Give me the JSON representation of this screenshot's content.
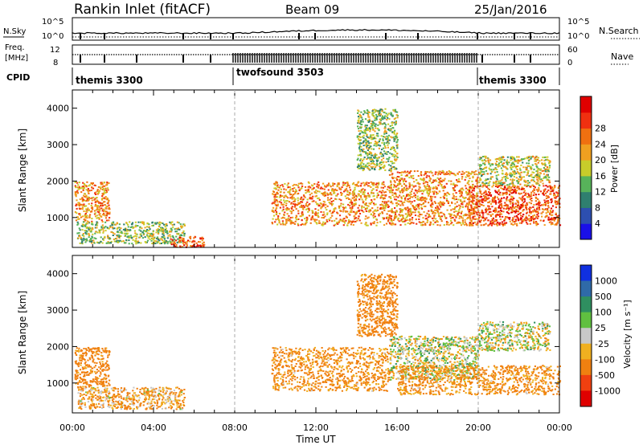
{
  "header": {
    "station": "Rankin Inlet (fitACF)",
    "beam": "Beam 09",
    "date": "25/Jan/2016"
  },
  "meta_panels": {
    "nsky_label": "N.Sky",
    "nsearch_label": "N.Search",
    "freq_label_top": "Freq.",
    "freq_label_bottom": "[MHz]",
    "nave_label": "Nave",
    "cpid_label": "CPID",
    "nsky_ticks": [
      "10^5",
      "10^0"
    ],
    "nsearch_ticks": [
      "10^5",
      "10^0"
    ],
    "freq_ticks": [
      "12",
      "8"
    ],
    "nave_ticks": [
      "60",
      "0"
    ],
    "cpid_segments": [
      {
        "name": "themis 3300",
        "start_hour": 0,
        "end_hour": 8
      },
      {
        "name": "twofsound 3503",
        "start_hour": 8,
        "end_hour": 20
      },
      {
        "name": "themis 3300",
        "start_hour": 20,
        "end_hour": 24
      }
    ]
  },
  "axes": {
    "ylabel": "Slant Range [km]",
    "xlabel": "Time UT",
    "x_ticks": [
      "00:00",
      "04:00",
      "08:00",
      "12:00",
      "16:00",
      "20:00",
      "00:00"
    ],
    "y_ticks": [
      "1000",
      "2000",
      "3000",
      "4000"
    ]
  },
  "colorbars": {
    "power": {
      "label": "Power [dB]",
      "ticks": [
        "4",
        "8",
        "12",
        "16",
        "20",
        "24",
        "28"
      ],
      "colors": [
        "#1a10e8",
        "#2d4fb0",
        "#2f7f6f",
        "#57b35a",
        "#c8cc2a",
        "#f0a020",
        "#f07010",
        "#f03010",
        "#e00000"
      ]
    },
    "velocity": {
      "label": "Velocity [m s⁻¹]",
      "ticks": [
        "1000",
        "500",
        "100",
        "25",
        "-25",
        "-100",
        "-500",
        "-1000"
      ],
      "colors": [
        "#1030e0",
        "#2f6aa8",
        "#2f8f60",
        "#60c040",
        "#c8c8c8",
        "#f0b020",
        "#f08010",
        "#f04010",
        "#e00000"
      ]
    }
  },
  "chart_data": [
    {
      "type": "heatmap",
      "name": "power",
      "x_range_hours": [
        0,
        24
      ],
      "y_range_km": [
        180,
        4500
      ],
      "regions": [
        {
          "t0": 0.1,
          "t1": 1.8,
          "r0": 900,
          "r1": 2000,
          "value_db": 22
        },
        {
          "t0": 0.2,
          "t1": 5.5,
          "r0": 300,
          "r1": 900,
          "value_db": 14
        },
        {
          "t0": 4.8,
          "t1": 6.5,
          "r0": 200,
          "r1": 500,
          "value_db": 26
        },
        {
          "t0": 9.8,
          "t1": 15.6,
          "r0": 800,
          "r1": 2000,
          "value_db": 22
        },
        {
          "t0": 14.0,
          "t1": 16.0,
          "r0": 2300,
          "r1": 4000,
          "value_db": 14
        },
        {
          "t0": 15.6,
          "t1": 20.0,
          "r0": 800,
          "r1": 2300,
          "value_db": 22
        },
        {
          "t0": 19.5,
          "t1": 24.0,
          "r0": 800,
          "r1": 1900,
          "value_db": 26
        },
        {
          "t0": 20.0,
          "t1": 23.5,
          "r0": 1900,
          "r1": 2700,
          "value_db": 16
        }
      ]
    },
    {
      "type": "heatmap",
      "name": "velocity",
      "x_range_hours": [
        0,
        24
      ],
      "y_range_km": [
        180,
        4500
      ],
      "regions": [
        {
          "t0": 0.1,
          "t1": 1.8,
          "r0": 900,
          "r1": 2000,
          "value_ms": -200
        },
        {
          "t0": 0.2,
          "t1": 5.5,
          "r0": 300,
          "r1": 900,
          "value_ms": -100
        },
        {
          "t0": 9.8,
          "t1": 15.6,
          "r0": 800,
          "r1": 2000,
          "value_ms": -150
        },
        {
          "t0": 14.0,
          "t1": 16.0,
          "r0": 2300,
          "r1": 4000,
          "value_ms": -200
        },
        {
          "t0": 15.6,
          "t1": 20.0,
          "r0": 1100,
          "r1": 2300,
          "value_ms": 0
        },
        {
          "t0": 16.0,
          "t1": 24.0,
          "r0": 700,
          "r1": 1500,
          "value_ms": -150
        },
        {
          "t0": 20.0,
          "t1": 23.5,
          "r0": 1900,
          "r1": 2700,
          "value_ms": 0
        }
      ]
    }
  ]
}
